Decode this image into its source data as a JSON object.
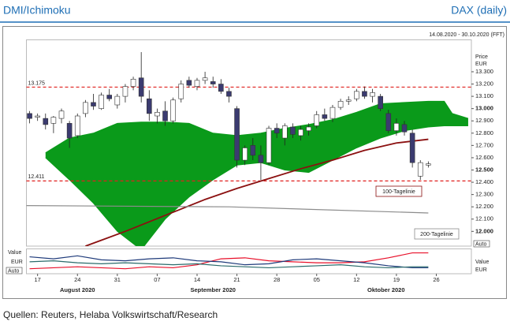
{
  "header_left": "DMI/Ichimoku",
  "header_right": "DAX (daily)",
  "source": "Quellen: Reuters, Helaba Volkswirtschaft/Research",
  "chart_data": {
    "type": "candlestick",
    "date_range": "14.08.2020 - 30.10.2020 (FFT)",
    "price_label": "Price",
    "currency": "EUR",
    "price_auto": "Auto",
    "xlim": [
      -0.4,
      55.4
    ],
    "xticks": [
      {
        "value": 1,
        "label": "17"
      },
      {
        "value": 6,
        "label": "24"
      },
      {
        "value": 11,
        "label": "31"
      },
      {
        "value": 16,
        "label": "07"
      },
      {
        "value": 21,
        "label": "14"
      },
      {
        "value": 26,
        "label": "21"
      },
      {
        "value": 31,
        "label": "28"
      },
      {
        "value": 36,
        "label": "05"
      },
      {
        "value": 41,
        "label": "12"
      },
      {
        "value": 46,
        "label": "19"
      },
      {
        "value": 51,
        "label": "26"
      }
    ],
    "month_ticks": [
      {
        "value": 6,
        "label": "August 2020"
      },
      {
        "value": 23,
        "label": "September 2020"
      },
      {
        "value": 44.7,
        "label": "Oktober 2020"
      }
    ],
    "ylim": [
      11880,
      13560
    ],
    "yticks": [
      {
        "value": 12000,
        "label": "12.000"
      },
      {
        "value": 12100,
        "label": "12.100"
      },
      {
        "value": 12200,
        "label": "12.200"
      },
      {
        "value": 12300,
        "label": "12.300"
      },
      {
        "value": 12400,
        "label": "12.400"
      },
      {
        "value": 12500,
        "label": "12.500"
      },
      {
        "value": 12600,
        "label": "12.600"
      },
      {
        "value": 12700,
        "label": "12.700"
      },
      {
        "value": 12800,
        "label": "12.800"
      },
      {
        "value": 12900,
        "label": "12.900"
      },
      {
        "value": 13000,
        "label": "13.000"
      },
      {
        "value": 13100,
        "label": "13.100"
      },
      {
        "value": 13200,
        "label": "13.200"
      },
      {
        "value": 13300,
        "label": "13.300"
      }
    ],
    "bold_yticks": [
      12000,
      12500,
      13000
    ],
    "levels": [
      {
        "value": 13175,
        "label": "13.175",
        "color": "#e0201e"
      },
      {
        "value": 12411,
        "label": "12.411",
        "color": "#e0201e"
      }
    ],
    "candles": {
      "up_color": "#ffffff",
      "down_color": "#3b3b70",
      "x": [
        0,
        1,
        2,
        3,
        4,
        5,
        6,
        7,
        8,
        9,
        10,
        11,
        12,
        13,
        14,
        15,
        16,
        17,
        18,
        19,
        20,
        21,
        22,
        23,
        24,
        25,
        26,
        27,
        28,
        29,
        30,
        31,
        32,
        33,
        34,
        35,
        36,
        37,
        38,
        39,
        40,
        41,
        42,
        43,
        44,
        45,
        46,
        47,
        48,
        49,
        50
      ],
      "open": [
        12960,
        12930,
        12920,
        12880,
        12920,
        12880,
        12780,
        12960,
        13050,
        13000,
        13110,
        13030,
        13100,
        13180,
        13250,
        13080,
        12940,
        12980,
        12900,
        13080,
        13230,
        13180,
        13230,
        13220,
        13200,
        13140,
        13000,
        12580,
        12700,
        12620,
        12560,
        12840,
        12760,
        12850,
        12780,
        12820,
        12860,
        12950,
        12920,
        13010,
        13060,
        13080,
        13140,
        13100,
        13100,
        12960,
        12820,
        12870,
        12800,
        12450,
        12540
      ],
      "high": [
        12980,
        12960,
        12960,
        12940,
        13000,
        12900,
        12960,
        13070,
        13120,
        13130,
        13160,
        13120,
        13200,
        13260,
        13460,
        13150,
        13000,
        13060,
        13090,
        13230,
        13260,
        13250,
        13300,
        13260,
        13240,
        13170,
        13020,
        12700,
        12760,
        12700,
        12860,
        12880,
        12880,
        12880,
        12860,
        12880,
        12980,
        13000,
        13030,
        13080,
        13100,
        13160,
        13180,
        13160,
        13120,
        12990,
        12920,
        12900,
        12830,
        12580,
        12570
      ],
      "low": [
        12880,
        12900,
        12830,
        12800,
        12880,
        12680,
        12760,
        12930,
        12990,
        12990,
        13060,
        13000,
        13050,
        13150,
        13050,
        12900,
        12880,
        12860,
        12880,
        13050,
        13170,
        13150,
        13200,
        13170,
        13120,
        13050,
        12520,
        12540,
        12580,
        12420,
        12540,
        12760,
        12700,
        12760,
        12740,
        12780,
        12840,
        12900,
        12890,
        12990,
        13030,
        13060,
        13080,
        13050,
        12980,
        12800,
        12780,
        12780,
        12520,
        12420,
        12520
      ],
      "close": [
        12920,
        12940,
        12870,
        12930,
        12980,
        12760,
        12940,
        13050,
        13020,
        13110,
        13080,
        13100,
        13180,
        13240,
        13100,
        12960,
        12970,
        12900,
        13070,
        13200,
        13190,
        13230,
        13250,
        13200,
        13140,
        13100,
        12580,
        12680,
        12620,
        12560,
        12840,
        12800,
        12860,
        12790,
        12830,
        12850,
        12950,
        12920,
        13010,
        13060,
        13070,
        13140,
        13100,
        13130,
        13000,
        12820,
        12880,
        12810,
        12560,
        12560,
        12550
      ]
    },
    "cloud": {
      "color": "#0a9a1a",
      "x": [
        2,
        5,
        8,
        11,
        14,
        17,
        20,
        23,
        26,
        29,
        32,
        35,
        38,
        41,
        44,
        47,
        50,
        52,
        53,
        55
      ],
      "upper": [
        12640,
        12760,
        12800,
        12880,
        12890,
        12890,
        12880,
        12800,
        12780,
        12800,
        12840,
        12870,
        12910,
        12970,
        13040,
        13050,
        13060,
        13060,
        12960,
        12920
      ],
      "lower": [
        12600,
        12420,
        12230,
        12000,
        11850,
        12100,
        12280,
        12420,
        12540,
        12560,
        12500,
        12480,
        12580,
        12680,
        12760,
        12820,
        12850,
        12860,
        12860,
        12860
      ]
    },
    "series": [
      {
        "name": "100-Tagelinie",
        "color": "#8b1010",
        "x": [
          7,
          12,
          17,
          22,
          26,
          30,
          34,
          38,
          42,
          46,
          50
        ],
        "values": [
          11880,
          12000,
          12130,
          12260,
          12350,
          12430,
          12510,
          12580,
          12660,
          12720,
          12750
        ]
      },
      {
        "name": "200-Tagelinie",
        "color": "#8c8c8c",
        "x": [
          -0.4,
          25,
          50
        ],
        "values": [
          12210,
          12200,
          12150
        ]
      }
    ],
    "lower_panel": {
      "left_labels": [
        "Value",
        "EUR",
        "Auto"
      ],
      "right_labels": [
        "Value",
        "EUR"
      ],
      "ylim": [
        0,
        50
      ],
      "x": [
        0,
        3,
        6,
        9,
        12,
        15,
        18,
        21,
        24,
        27,
        30,
        33,
        36,
        39,
        42,
        45,
        48,
        50
      ],
      "series": [
        {
          "color": "#e8102a",
          "values": [
            10,
            12,
            14,
            12,
            10,
            14,
            12,
            18,
            30,
            32,
            26,
            24,
            22,
            22,
            24,
            32,
            42,
            42
          ]
        },
        {
          "color": "#1e3a7a",
          "values": [
            34,
            30,
            36,
            28,
            26,
            30,
            32,
            26,
            24,
            18,
            20,
            28,
            30,
            26,
            22,
            16,
            12,
            12
          ]
        },
        {
          "color": "#2a6b6b",
          "values": [
            24,
            26,
            22,
            20,
            22,
            20,
            18,
            20,
            16,
            14,
            12,
            14,
            16,
            18,
            14,
            12,
            14,
            14
          ]
        }
      ]
    }
  }
}
